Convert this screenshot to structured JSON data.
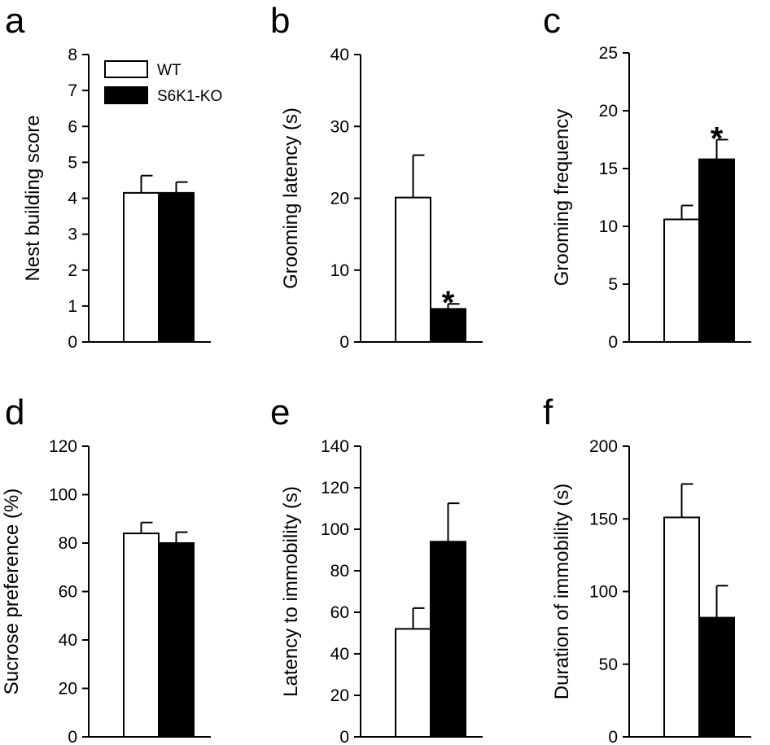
{
  "chart_data": [
    {
      "type": "bar",
      "panel": "a",
      "categories": [
        "WT",
        "S6K1-KO"
      ],
      "values": [
        4.15,
        4.15
      ],
      "errors": [
        0.48,
        0.3
      ],
      "ylabel": "Nest building score",
      "ylim": [
        0,
        8
      ],
      "yticks": [
        "0",
        "1",
        "2",
        "3",
        "4",
        "5",
        "6",
        "7",
        "8"
      ],
      "significance": "",
      "legend": {
        "entries": [
          "WT",
          "S6K1-KO"
        ],
        "placement": "top-left"
      }
    },
    {
      "type": "bar",
      "panel": "b",
      "categories": [
        "WT",
        "S6K1-KO"
      ],
      "values": [
        20.1,
        4.6
      ],
      "errors": [
        5.9,
        0.7
      ],
      "ylabel": "Grooming latency (s)",
      "ylim": [
        0,
        40
      ],
      "yticks": [
        "0",
        "10",
        "20",
        "30",
        "40"
      ],
      "significance": "*",
      "sig_on": 1
    },
    {
      "type": "bar",
      "panel": "c",
      "categories": [
        "WT",
        "S6K1-KO"
      ],
      "values": [
        10.6,
        15.8
      ],
      "errors": [
        1.2,
        1.7
      ],
      "ylabel": "Grooming frequency",
      "ylim": [
        0,
        25
      ],
      "yticks": [
        "0",
        "5",
        "10",
        "15",
        "20",
        "25"
      ],
      "significance": "*",
      "sig_on": 1
    },
    {
      "type": "bar",
      "panel": "d",
      "categories": [
        "WT",
        "S6K1-KO"
      ],
      "values": [
        84,
        80
      ],
      "errors": [
        4.5,
        4.5
      ],
      "ylabel": "Sucrose preference (%)",
      "ylim": [
        0,
        120
      ],
      "yticks": [
        "0",
        "20",
        "40",
        "60",
        "80",
        "100",
        "120"
      ],
      "significance": ""
    },
    {
      "type": "bar",
      "panel": "e",
      "categories": [
        "WT",
        "S6K1-KO"
      ],
      "values": [
        52,
        94
      ],
      "errors": [
        10,
        18.5
      ],
      "ylabel": "Latency to immobility (s)",
      "ylim": [
        0,
        140
      ],
      "yticks": [
        "0",
        "20",
        "40",
        "60",
        "80",
        "100",
        "120",
        "140"
      ],
      "significance": ""
    },
    {
      "type": "bar",
      "panel": "f",
      "categories": [
        "WT",
        "S6K1-KO"
      ],
      "values": [
        151,
        82
      ],
      "errors": [
        23,
        22
      ],
      "ylabel": "Duration of immobility (s)",
      "ylim": [
        0,
        200
      ],
      "yticks": [
        "0",
        "50",
        "100",
        "150",
        "200"
      ],
      "significance": ""
    }
  ],
  "colors": {
    "WT": "#ffffff",
    "S6K1-KO": "#000000",
    "stroke": "#000000"
  }
}
